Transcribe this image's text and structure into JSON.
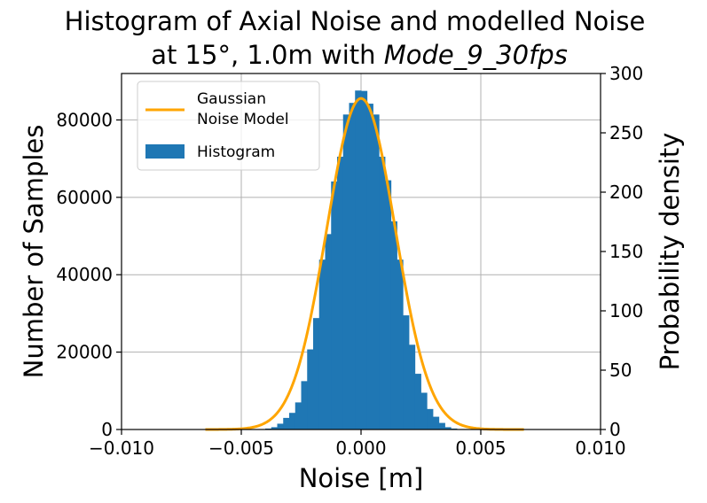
{
  "chart_data": {
    "type": "bar",
    "title_line1": "Histogram of Axial Noise and modelled Noise",
    "title_line2": "at 15°, 1.0m with Mode_9_30fps",
    "xlabel": "Noise [m]",
    "ylabel_left": "Number of Samples",
    "ylabel_right": "Probability density",
    "xlim": [
      -0.01,
      0.01
    ],
    "ylim_left": [
      0,
      92000
    ],
    "ylim_right": [
      0,
      300
    ],
    "x_ticks": [
      -0.01,
      -0.005,
      0.0,
      0.005,
      0.01
    ],
    "x_tick_labels": [
      "−0.010",
      "−0.005",
      "0.000",
      "0.005",
      "0.010"
    ],
    "y_left_ticks": [
      0,
      20000,
      40000,
      60000,
      80000
    ],
    "y_left_tick_labels": [
      "0",
      "20000",
      "40000",
      "60000",
      "80000"
    ],
    "y_right_ticks": [
      0,
      50,
      100,
      150,
      200,
      250,
      300
    ],
    "y_right_tick_labels": [
      "0",
      "50",
      "100",
      "150",
      "200",
      "250",
      "300"
    ],
    "legend": {
      "placement": "top-left",
      "entries": [
        "Gaussian\nNoise Model",
        "Histogram"
      ]
    },
    "grid": true,
    "histogram": {
      "name": "Histogram",
      "color": "#1f77b4",
      "bin_width": 0.00025,
      "bin_starts": [
        -0.004,
        -0.00375,
        -0.0035,
        -0.00325,
        -0.003,
        -0.00275,
        -0.0025,
        -0.00225,
        -0.002,
        -0.00175,
        -0.0015,
        -0.00125,
        -0.001,
        -0.00075,
        -0.0005,
        -0.00025,
        0.0,
        0.00025,
        0.0005,
        0.00075,
        0.001,
        0.00125,
        0.0015,
        0.00175,
        0.002,
        0.00225,
        0.0025,
        0.00275,
        0.003,
        0.00325,
        0.0035,
        0.00375
      ],
      "counts": [
        250,
        600,
        1500,
        3000,
        4300,
        7000,
        12500,
        20700,
        28800,
        43900,
        50500,
        64100,
        70500,
        81400,
        84400,
        87600,
        87500,
        84200,
        81400,
        70500,
        64400,
        53800,
        43900,
        29500,
        21900,
        14400,
        9500,
        5300,
        3300,
        1700,
        600,
        250
      ]
    },
    "gaussian": {
      "name": "Gaussian Noise Model",
      "color": "#ffa500",
      "mu": 0.0,
      "sigma": 0.00143,
      "x_range": [
        -0.0065,
        0.0068
      ]
    }
  }
}
